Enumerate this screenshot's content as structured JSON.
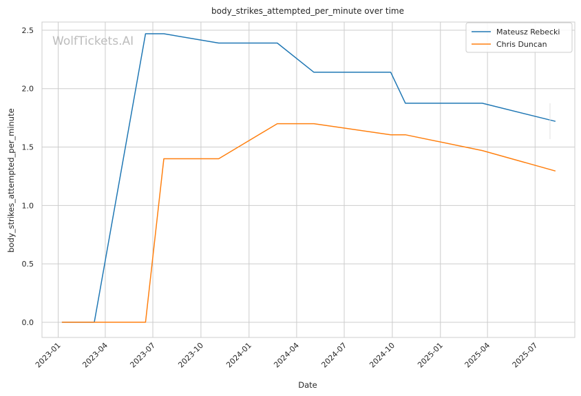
{
  "chart_data": {
    "type": "line",
    "title": "body_strikes_attempted_per_minute over time",
    "xlabel": "Date",
    "ylabel": "body_strikes_attempted_per_minute",
    "watermark": "WolfTickets.AI",
    "grid": true,
    "legend_position": "top-right",
    "xlim": [
      "2022-12-01",
      "2025-09-15"
    ],
    "ylim": [
      -0.13,
      2.57
    ],
    "x_ticks": [
      "2023-01",
      "2023-04",
      "2023-07",
      "2023-10",
      "2024-01",
      "2024-04",
      "2024-07",
      "2024-10",
      "2025-01",
      "2025-04",
      "2025-07"
    ],
    "y_ticks": [
      "0.0",
      "0.5",
      "1.0",
      "1.5",
      "2.0",
      "2.5"
    ],
    "series": [
      {
        "name": "Mateusz Rebecki",
        "color": "#1f77b4",
        "x": [
          "2023-01-08",
          "2023-03-11",
          "2023-06-17",
          "2023-07-22",
          "2023-11-04",
          "2024-02-24",
          "2024-05-04",
          "2024-09-28",
          "2024-10-26",
          "2025-03-22",
          "2025-08-09"
        ],
        "y": [
          0.0,
          0.0,
          2.47,
          2.47,
          2.39,
          2.39,
          2.14,
          2.14,
          1.875,
          1.875,
          1.72
        ]
      },
      {
        "name": "Chris Duncan",
        "color": "#ff7f0e",
        "x": [
          "2023-01-08",
          "2023-03-11",
          "2023-06-17",
          "2023-07-22",
          "2023-11-04",
          "2024-02-24",
          "2024-05-04",
          "2024-09-28",
          "2024-10-26",
          "2025-03-22",
          "2025-08-09"
        ],
        "y": [
          0.0,
          0.0,
          0.0,
          1.4,
          1.4,
          1.7,
          1.7,
          1.605,
          1.605,
          1.47,
          1.295
        ]
      }
    ]
  }
}
